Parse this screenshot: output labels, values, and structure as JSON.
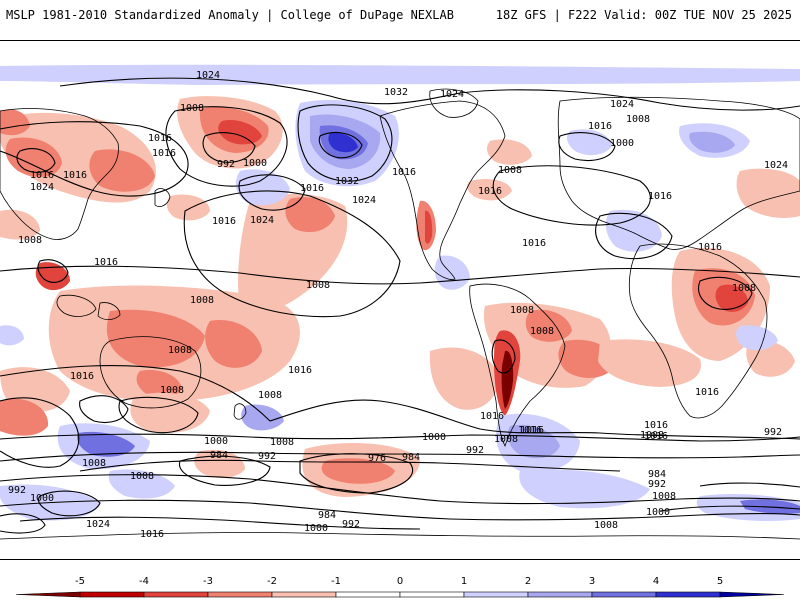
{
  "header": {
    "title_left": "MSLP 1981-2010 Standardized Anomaly | College of DuPage NEXLAB",
    "title_right": "18Z GFS | F222 Valid: 00Z TUE NOV 25 2025"
  },
  "colors": {
    "neg5": "#7a0000",
    "neg4": "#c00000",
    "neg3": "#e0443c",
    "neg2": "#f08070",
    "neg1": "#f8c0b0",
    "pos1": "#d0d0ff",
    "pos2": "#a8a8f0",
    "pos3": "#7070e0",
    "pos4": "#3030d0",
    "pos5": "#0000a0",
    "contour": "#000000",
    "coast": "#000000"
  },
  "isobar_labels": [
    {
      "text": "1024"
    },
    {
      "text": "1032"
    },
    {
      "text": "1024"
    },
    {
      "text": "1024"
    },
    {
      "text": "1008"
    },
    {
      "text": "1016"
    },
    {
      "text": "1016"
    },
    {
      "text": "1008"
    },
    {
      "text": "1016"
    },
    {
      "text": "992"
    },
    {
      "text": "1000"
    },
    {
      "text": "1016"
    },
    {
      "text": "1000"
    },
    {
      "text": "1016"
    },
    {
      "text": "1024"
    },
    {
      "text": "1016"
    },
    {
      "text": "1032"
    },
    {
      "text": "1016"
    },
    {
      "text": "1016"
    },
    {
      "text": "1008"
    },
    {
      "text": "1024"
    },
    {
      "text": "1016"
    },
    {
      "text": "1024"
    },
    {
      "text": "1024"
    },
    {
      "text": "1016"
    },
    {
      "text": "1016"
    },
    {
      "text": "1016"
    },
    {
      "text": "1016"
    },
    {
      "text": "1008"
    },
    {
      "text": "1008"
    },
    {
      "text": "1008"
    },
    {
      "text": "1008"
    },
    {
      "text": "1008"
    },
    {
      "text": "1016"
    },
    {
      "text": "1016"
    },
    {
      "text": "1008"
    },
    {
      "text": "1008"
    },
    {
      "text": "1016"
    },
    {
      "text": "1016"
    },
    {
      "text": "1008"
    },
    {
      "text": "1016"
    },
    {
      "text": "1008"
    },
    {
      "text": "1016"
    },
    {
      "text": "1000"
    },
    {
      "text": "1008"
    },
    {
      "text": "1000"
    },
    {
      "text": "992"
    },
    {
      "text": "1008"
    },
    {
      "text": "992"
    },
    {
      "text": "984"
    },
    {
      "text": "992"
    },
    {
      "text": "976"
    },
    {
      "text": "984"
    },
    {
      "text": "992"
    },
    {
      "text": "1008"
    },
    {
      "text": "1000"
    },
    {
      "text": "1024"
    },
    {
      "text": "1016"
    },
    {
      "text": "984"
    },
    {
      "text": "992"
    },
    {
      "text": "1000"
    },
    {
      "text": "1008"
    },
    {
      "text": "1008"
    },
    {
      "text": "1000"
    },
    {
      "text": "984"
    },
    {
      "text": "992"
    },
    {
      "text": "1008"
    },
    {
      "text": "1016"
    },
    {
      "text": "1008"
    },
    {
      "text": "1016"
    }
  ],
  "colorbar": {
    "ticks": [
      "-5",
      "-4",
      "-3",
      "-2",
      "-1",
      "0",
      "1",
      "2",
      "3",
      "4",
      "5"
    ]
  }
}
